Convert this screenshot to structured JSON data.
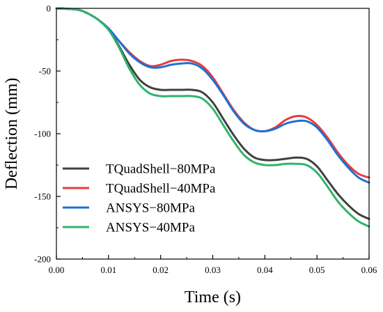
{
  "chart_data": {
    "type": "line",
    "title": "",
    "xlabel": "Time (s)",
    "ylabel": "Deflection (mm)",
    "xlim": [
      0,
      0.06
    ],
    "ylim": [
      -200,
      0
    ],
    "x_ticks": [
      "0.00",
      "0.01",
      "0.02",
      "0.03",
      "0.04",
      "0.05",
      "0.06"
    ],
    "y_ticks": [
      "0",
      "-50",
      "-100",
      "-150",
      "-200"
    ],
    "grid": false,
    "legend_position": "bottom-left",
    "series": [
      {
        "name": "TQuadShell−80MPa",
        "color": "#404040",
        "x": [
          0,
          0.004,
          0.006,
          0.008,
          0.01,
          0.012,
          0.014,
          0.016,
          0.018,
          0.02,
          0.022,
          0.024,
          0.026,
          0.028,
          0.03,
          0.032,
          0.034,
          0.036,
          0.038,
          0.04,
          0.042,
          0.044,
          0.046,
          0.048,
          0.05,
          0.052,
          0.054,
          0.056,
          0.058,
          0.06
        ],
        "values": [
          0,
          -1,
          -4,
          -9,
          -17,
          -30,
          -45,
          -57,
          -63,
          -65,
          -65,
          -65,
          -65,
          -67,
          -75,
          -88,
          -101,
          -112,
          -119,
          -121,
          -121,
          -120,
          -119,
          -120,
          -126,
          -137,
          -148,
          -157,
          -164,
          -168
        ]
      },
      {
        "name": "TQuadShell−40MPa",
        "color": "#e83a3a",
        "x": [
          0,
          0.004,
          0.006,
          0.008,
          0.01,
          0.012,
          0.014,
          0.016,
          0.018,
          0.02,
          0.022,
          0.024,
          0.026,
          0.028,
          0.03,
          0.032,
          0.034,
          0.036,
          0.038,
          0.04,
          0.042,
          0.044,
          0.046,
          0.048,
          0.05,
          0.052,
          0.054,
          0.056,
          0.058,
          0.06
        ],
        "values": [
          0,
          -1,
          -4,
          -9,
          -16,
          -26,
          -35,
          -42,
          -46,
          -45,
          -42,
          -41,
          -42,
          -46,
          -55,
          -68,
          -81,
          -91,
          -97,
          -98,
          -95,
          -89,
          -86,
          -87,
          -93,
          -103,
          -115,
          -125,
          -132,
          -135
        ]
      },
      {
        "name": "ANSYS−80MPa",
        "color": "#1f6fd6",
        "x": [
          0,
          0.004,
          0.006,
          0.008,
          0.01,
          0.012,
          0.014,
          0.016,
          0.018,
          0.02,
          0.022,
          0.024,
          0.026,
          0.028,
          0.03,
          0.032,
          0.034,
          0.036,
          0.038,
          0.04,
          0.042,
          0.044,
          0.046,
          0.048,
          0.05,
          0.052,
          0.054,
          0.056,
          0.058,
          0.06
        ],
        "values": [
          0,
          -1,
          -4,
          -9,
          -16,
          -26,
          -36,
          -43,
          -47,
          -47,
          -45,
          -44,
          -44,
          -48,
          -57,
          -69,
          -82,
          -92,
          -97,
          -98,
          -96,
          -92,
          -90,
          -90,
          -95,
          -105,
          -117,
          -127,
          -135,
          -139
        ]
      },
      {
        "name": "ANSYS−40MPa",
        "color": "#2fb36a",
        "x": [
          0,
          0.004,
          0.006,
          0.008,
          0.01,
          0.012,
          0.014,
          0.016,
          0.018,
          0.02,
          0.022,
          0.024,
          0.026,
          0.028,
          0.03,
          0.032,
          0.034,
          0.036,
          0.038,
          0.04,
          0.042,
          0.044,
          0.046,
          0.048,
          0.05,
          0.052,
          0.054,
          0.056,
          0.058,
          0.06
        ],
        "values": [
          0,
          -1,
          -4,
          -9,
          -17,
          -31,
          -48,
          -61,
          -68,
          -70,
          -70,
          -70,
          -70,
          -72,
          -80,
          -93,
          -106,
          -117,
          -123,
          -125,
          -125,
          -124,
          -124,
          -125,
          -131,
          -142,
          -154,
          -163,
          -170,
          -174
        ]
      }
    ]
  }
}
